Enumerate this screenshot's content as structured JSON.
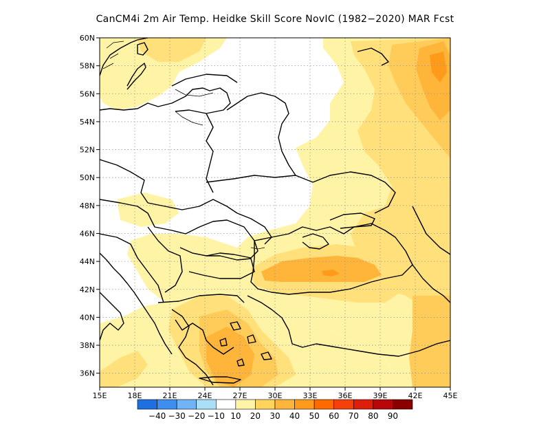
{
  "title": "CanCM4i  2m Air Temp. Heidke Skill Score NovIC (1982−2020) MAR Fcst",
  "map": {
    "lon_range": [
      15,
      45
    ],
    "lat_range": [
      35,
      60
    ],
    "lon_ticks": [
      "15E",
      "18E",
      "21E",
      "24E",
      "27E",
      "30E",
      "33E",
      "36E",
      "39E",
      "42E",
      "45E"
    ],
    "lat_ticks": [
      "36N",
      "38N",
      "40N",
      "42N",
      "44N",
      "46N",
      "48N",
      "50N",
      "52N",
      "54N",
      "56N",
      "58N",
      "60N"
    ],
    "grid": "dotted",
    "land_color": "#ffffff",
    "coast_color": "#000000"
  },
  "colorbar": {
    "colors": [
      "#1e6fe0",
      "#3d8ef0",
      "#72b3f5",
      "#a9dff7",
      "#ffffff",
      "#fff4a6",
      "#ffd45a",
      "#ffb43a",
      "#ff9a1a",
      "#ff6a00",
      "#f5400a",
      "#dc1e0a",
      "#b9060a",
      "#8a0000"
    ],
    "labels": [
      "−40",
      "−30",
      "−20",
      "−10",
      "10",
      "20",
      "30",
      "40",
      "50",
      "60",
      "70",
      "80",
      "90"
    ]
  },
  "skill_colors": {
    "c10": "#fff4a6",
    "c20": "#ffe07a",
    "c30": "#ffcc5a",
    "c40": "#ffb43a",
    "c50": "#ff9a1a"
  }
}
